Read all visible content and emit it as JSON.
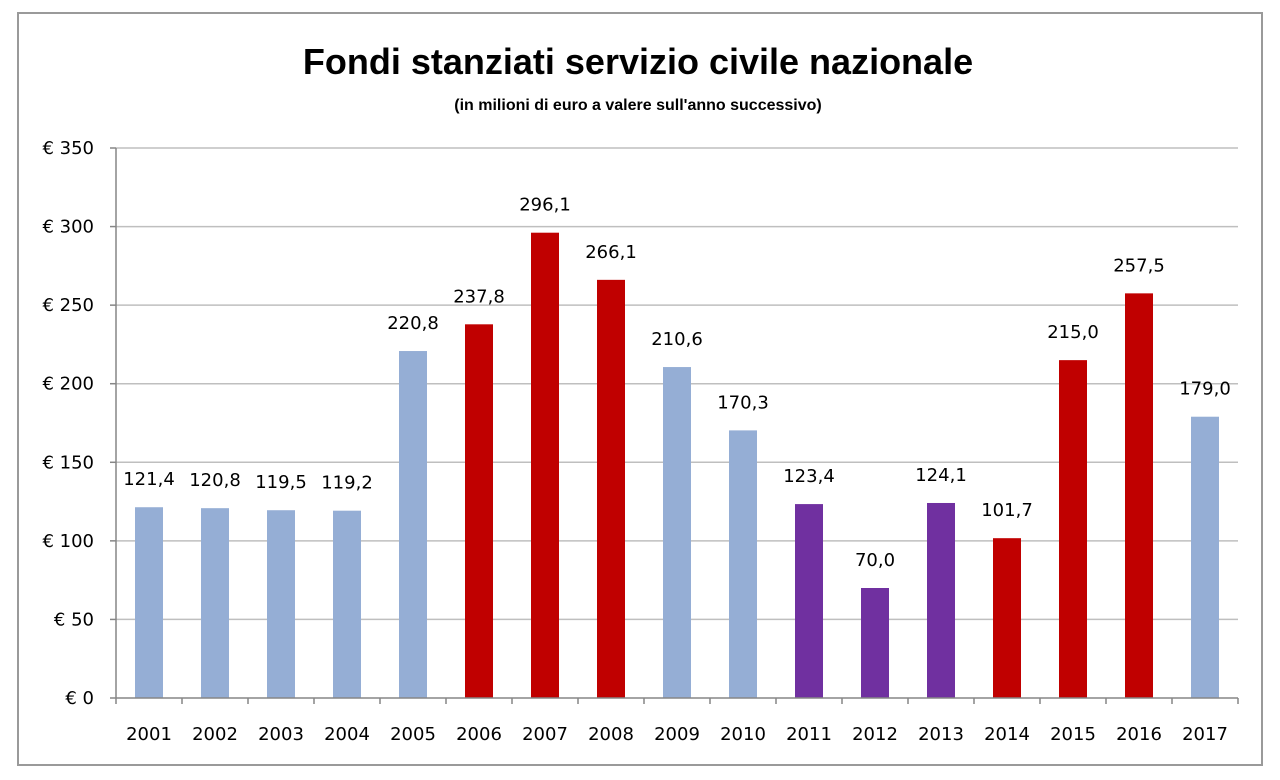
{
  "chart_data": {
    "type": "bar",
    "title": "Fondi stanziati servizio civile nazionale",
    "subtitle": "(in milioni di euro a valere sull'anno successivo)",
    "xlabel": "",
    "ylabel": "",
    "ylim": [
      0,
      350
    ],
    "y_ticks": [
      0,
      50,
      100,
      150,
      200,
      250,
      300,
      350
    ],
    "y_tick_labels": [
      "€ 0",
      "€ 50",
      "€ 100",
      "€ 150",
      "€ 200",
      "€ 250",
      "€ 300",
      "€ 350"
    ],
    "grid": true,
    "legend": "none",
    "categories": [
      "2001",
      "2002",
      "2003",
      "2004",
      "2005",
      "2006",
      "2007",
      "2008",
      "2009",
      "2010",
      "2011",
      "2012",
      "2013",
      "2014",
      "2015",
      "2016",
      "2017"
    ],
    "values": [
      121.4,
      120.8,
      119.5,
      119.2,
      220.8,
      237.8,
      296.1,
      266.1,
      210.6,
      170.3,
      123.4,
      70.0,
      124.1,
      101.7,
      215.0,
      257.5,
      179.0
    ],
    "value_labels": [
      "121,4",
      "120,8",
      "119,5",
      "119,2",
      "220,8",
      "237,8",
      "296,1",
      "266,1",
      "210,6",
      "170,3",
      "123,4",
      "70,0",
      "124,1",
      "101,7",
      "215,0",
      "257,5",
      "179,0"
    ],
    "bar_colors": [
      "#95aed5",
      "#95aed5",
      "#95aed5",
      "#95aed5",
      "#95aed5",
      "#c00000",
      "#c00000",
      "#c00000",
      "#95aed5",
      "#95aed5",
      "#7030a0",
      "#7030a0",
      "#7030a0",
      "#c00000",
      "#c00000",
      "#c00000",
      "#95aed5"
    ],
    "grid_color": "#bfbfbf",
    "axis_color": "#868686"
  }
}
